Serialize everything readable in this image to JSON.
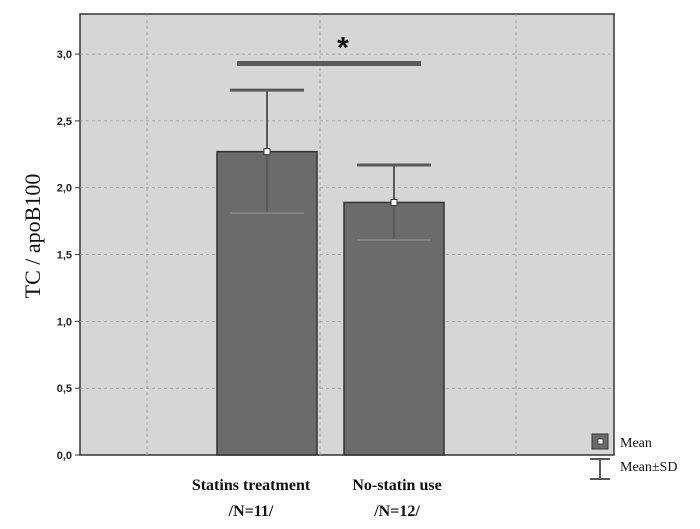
{
  "chart_data": {
    "type": "bar",
    "categories": [
      {
        "line1": "Statins treatment",
        "line2": "/N=11/"
      },
      {
        "line1": "No-statin use",
        "line2": "/N=12/"
      }
    ],
    "values": [
      2.27,
      1.89
    ],
    "sd_upper": [
      2.73,
      2.17
    ],
    "sd_lower": [
      1.81,
      1.61
    ],
    "ylabel": "TC / apoB100",
    "ylim": [
      0,
      3.3
    ],
    "yticks": [
      "0,0",
      "0,5",
      "1,0",
      "1,5",
      "2,0",
      "2,5",
      "3,0"
    ],
    "ytick_values": [
      0,
      0.5,
      1.0,
      1.5,
      2.0,
      2.5,
      3.0
    ],
    "grid": true,
    "significance": {
      "label": "*",
      "y": 2.93
    },
    "legend": {
      "placement": "bottom-right",
      "items": [
        "Mean",
        "Mean±SD"
      ]
    },
    "colors": {
      "bar": "#6b6b6b",
      "plot_bg": "#d6d6d6",
      "error": "#5a5a5a",
      "grid": "#9a9a9a"
    }
  }
}
